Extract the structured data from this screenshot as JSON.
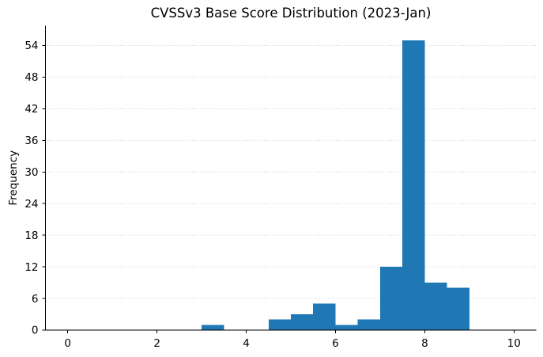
{
  "chart_data": {
    "type": "bar",
    "subtype": "histogram",
    "title": "CVSSv3 Base Score Distribution (2023-Jan)",
    "xlabel": "",
    "ylabel": "Frequency",
    "bin_edges": [
      3.0,
      3.5,
      4.0,
      4.5,
      5.0,
      5.5,
      6.0,
      6.5,
      7.0,
      7.5,
      8.0,
      8.5,
      9.0
    ],
    "counts": [
      1,
      0,
      0,
      2,
      3,
      5,
      1,
      2,
      12,
      55,
      9,
      8
    ],
    "xticks": [
      0,
      2,
      4,
      6,
      8,
      10
    ],
    "yticks": [
      0,
      6,
      12,
      18,
      24,
      30,
      36,
      42,
      48,
      54
    ],
    "xlim": [
      -0.5,
      10.5
    ],
    "ylim": [
      0,
      57.75
    ],
    "bar_color": "#1f77b4",
    "text_color": "#000000",
    "grid": {
      "axis": "y",
      "style": "dotted",
      "color": "#c9c9c9",
      "on": true
    },
    "legend": "none",
    "background": "#ffffff"
  }
}
